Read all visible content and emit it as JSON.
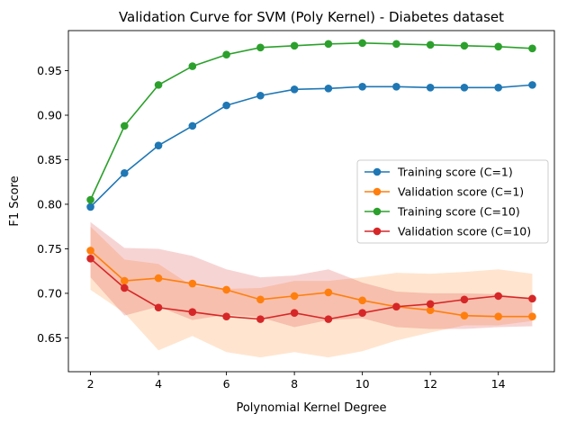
{
  "chart_data": {
    "type": "line",
    "title": "Validation Curve for SVM (Poly Kernel) - Diabetes dataset",
    "xlabel": "Polynomial Kernel Degree",
    "ylabel": "F1 Score",
    "xlim": [
      1.35,
      15.65
    ],
    "ylim": [
      0.612,
      0.995
    ],
    "xticks": [
      2,
      4,
      6,
      8,
      10,
      12,
      14
    ],
    "yticks": [
      0.65,
      0.7,
      0.75,
      0.8,
      0.85,
      0.9,
      0.95
    ],
    "grid": false,
    "legend_position": "center-right",
    "x": [
      2,
      3,
      4,
      5,
      6,
      7,
      8,
      9,
      10,
      11,
      12,
      13,
      14,
      15
    ],
    "series": [
      {
        "name": "Training score (C=1)",
        "color": "#1f77b4",
        "values": [
          0.797,
          0.835,
          0.866,
          0.888,
          0.911,
          0.922,
          0.929,
          0.93,
          0.932,
          0.932,
          0.931,
          0.931,
          0.931,
          0.934
        ]
      },
      {
        "name": "Validation score (C=1)",
        "color": "#ff7f0e",
        "values": [
          0.748,
          0.714,
          0.717,
          0.711,
          0.704,
          0.693,
          0.697,
          0.701,
          0.692,
          0.685,
          0.681,
          0.675,
          0.674,
          0.674
        ],
        "band_lower": [
          0.704,
          0.678,
          0.636,
          0.652,
          0.634,
          0.628,
          0.634,
          0.628,
          0.635,
          0.647,
          0.656,
          0.664,
          0.664,
          0.669
        ],
        "band_upper": [
          0.775,
          0.738,
          0.733,
          0.708,
          0.705,
          0.706,
          0.714,
          0.714,
          0.718,
          0.723,
          0.722,
          0.724,
          0.727,
          0.722
        ]
      },
      {
        "name": "Training score (C=10)",
        "color": "#2ca02c",
        "values": [
          0.805,
          0.888,
          0.934,
          0.955,
          0.968,
          0.976,
          0.978,
          0.98,
          0.981,
          0.98,
          0.979,
          0.978,
          0.977,
          0.975
        ]
      },
      {
        "name": "Validation score (C=10)",
        "color": "#d62728",
        "values": [
          0.739,
          0.706,
          0.684,
          0.679,
          0.674,
          0.671,
          0.678,
          0.671,
          0.678,
          0.685,
          0.688,
          0.693,
          0.697,
          0.694
        ],
        "band_lower": [
          0.718,
          0.675,
          0.685,
          0.67,
          0.676,
          0.673,
          0.662,
          0.67,
          0.672,
          0.662,
          0.66,
          0.66,
          0.662,
          0.663
        ],
        "band_upper": [
          0.78,
          0.751,
          0.75,
          0.742,
          0.727,
          0.718,
          0.72,
          0.727,
          0.712,
          0.702,
          0.7,
          0.7,
          0.699,
          0.694
        ]
      }
    ]
  }
}
